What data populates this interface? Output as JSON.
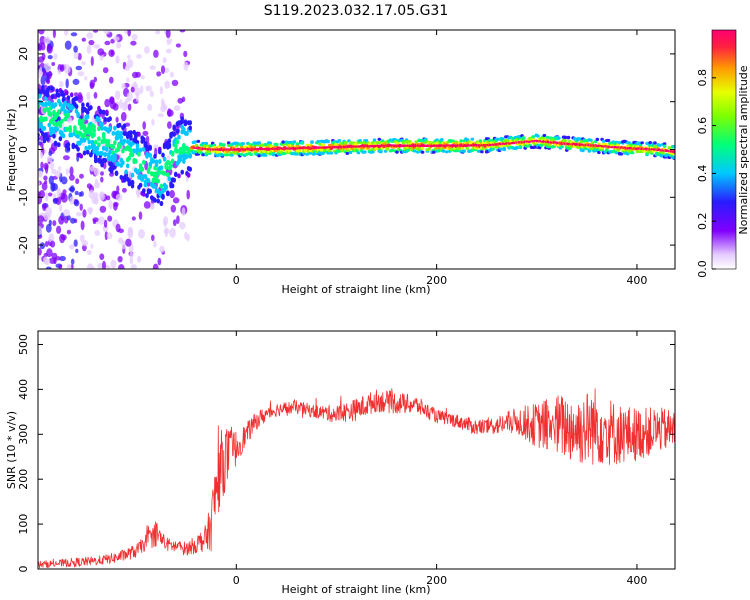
{
  "title": "S119.2023.032.17.05.G31",
  "chart_data": [
    {
      "type": "heatmap",
      "name": "spectrogram",
      "xlabel": "Height of straight line (km)",
      "ylabel": "Frequency (Hz)",
      "xlim": [
        -198,
        438
      ],
      "ylim": [
        -25,
        25
      ],
      "xticks": [
        0,
        200,
        400
      ],
      "yticks": [
        -20,
        -10,
        0,
        10,
        20
      ],
      "colorbar": {
        "label": "Normalized spectral amplitude",
        "ticks": [
          0.0,
          0.2,
          0.4,
          0.6,
          0.8
        ],
        "range": [
          0,
          1
        ],
        "colormap": [
          "#ffffff",
          "#f0e0ff",
          "#7a00ff",
          "#3a00ff",
          "#00c8ff",
          "#00ff60",
          "#d8ff00",
          "#ff8000",
          "#ff0040"
        ]
      },
      "ridge": {
        "x": [
          -198,
          -170,
          -150,
          -130,
          -110,
          -95,
          -85,
          -75,
          -68,
          -62,
          -55,
          -45,
          -35,
          -25,
          -10,
          0,
          50,
          100,
          150,
          200,
          250,
          300,
          330,
          360,
          390,
          420,
          438
        ],
        "y": [
          8,
          6,
          4,
          2,
          -1,
          -3,
          -5,
          -6,
          -4,
          -1,
          1,
          0.5,
          0.2,
          0,
          0,
          0,
          0.2,
          0.5,
          0.8,
          0.8,
          0.9,
          1.8,
          1.2,
          0.8,
          0.3,
          0,
          -0.5
        ]
      },
      "grid": false
    },
    {
      "type": "line",
      "name": "snr",
      "xlabel": "Height of straight line (km)",
      "ylabel": "SNR (10 * v/v)",
      "xlim": [
        -198,
        438
      ],
      "ylim": [
        0,
        530
      ],
      "xticks": [
        0,
        200,
        400
      ],
      "yticks": [
        0,
        100,
        200,
        300,
        400,
        500
      ],
      "color": "#f03030",
      "x": [
        -198,
        -180,
        -160,
        -140,
        -120,
        -100,
        -90,
        -80,
        -70,
        -60,
        -50,
        -40,
        -30,
        -25,
        -20,
        -15,
        -10,
        -5,
        0,
        5,
        10,
        20,
        30,
        40,
        60,
        80,
        100,
        120,
        140,
        160,
        180,
        200,
        220,
        240,
        260,
        280,
        300,
        320,
        340,
        360,
        380,
        400,
        420,
        438
      ],
      "y": [
        10,
        12,
        15,
        18,
        25,
        40,
        60,
        80,
        55,
        50,
        45,
        55,
        70,
        100,
        180,
        230,
        250,
        260,
        270,
        285,
        300,
        330,
        345,
        355,
        360,
        350,
        345,
        355,
        375,
        370,
        365,
        340,
        330,
        315,
        320,
        330,
        320,
        320,
        310,
        320,
        300,
        300,
        310,
        310
      ],
      "spread": [
        8,
        8,
        10,
        10,
        12,
        15,
        18,
        30,
        15,
        15,
        15,
        20,
        30,
        60,
        80,
        80,
        70,
        50,
        40,
        30,
        25,
        20,
        18,
        15,
        15,
        15,
        20,
        25,
        25,
        25,
        20,
        15,
        15,
        18,
        20,
        30,
        50,
        70,
        80,
        90,
        70,
        60,
        50,
        45
      ]
    }
  ]
}
